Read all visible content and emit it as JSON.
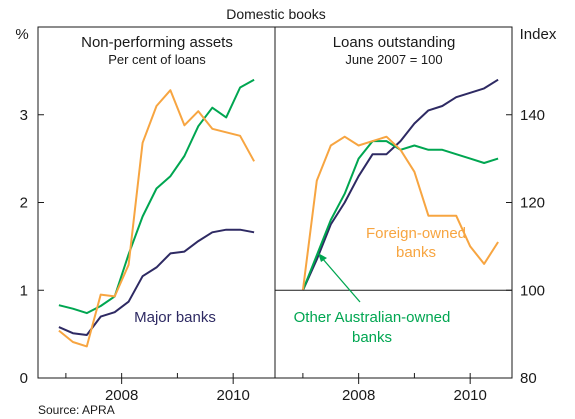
{
  "title": "Domestic books",
  "source": "Source: APRA",
  "colors": {
    "major": "#2e2a63",
    "other": "#00a651",
    "foreign": "#f7a541",
    "frame": "#1a1a1a"
  },
  "left_axis": {
    "unit": "%",
    "ticks": [
      "0",
      "1",
      "2",
      "3"
    ]
  },
  "right_axis": {
    "unit": "Index",
    "ticks": [
      "80",
      "100",
      "120",
      "140"
    ]
  },
  "chart_data": [
    {
      "type": "line",
      "title": "Non-performing assets",
      "subtitle": "Per cent of loans",
      "ylabel": "%",
      "ylim": [
        0,
        4
      ],
      "xlim": [
        2006.5,
        2010.75
      ],
      "x_ticks": [
        "2008",
        "2010"
      ],
      "x": [
        2006.875,
        2007.125,
        2007.375,
        2007.625,
        2007.875,
        2008.125,
        2008.375,
        2008.625,
        2008.875,
        2009.125,
        2009.375,
        2009.625,
        2009.875,
        2010.125,
        2010.375
      ],
      "series": [
        {
          "name": "Major banks",
          "color": "#2e2a63",
          "values": [
            0.58,
            0.51,
            0.49,
            0.7,
            0.75,
            0.87,
            1.16,
            1.26,
            1.42,
            1.44,
            1.56,
            1.66,
            1.69,
            1.69,
            1.66
          ]
        },
        {
          "name": "Other Australian-owned banks",
          "color": "#00a651",
          "values": [
            0.83,
            0.79,
            0.74,
            0.82,
            0.93,
            1.41,
            1.84,
            2.16,
            2.3,
            2.53,
            2.87,
            3.08,
            2.97,
            3.31,
            3.4
          ]
        },
        {
          "name": "Foreign-owned banks",
          "color": "#f7a541",
          "values": [
            0.54,
            0.41,
            0.36,
            0.95,
            0.93,
            1.29,
            2.68,
            3.1,
            3.28,
            2.88,
            3.04,
            2.84,
            2.8,
            2.76,
            2.47
          ]
        }
      ],
      "annotations": [
        "Major banks"
      ]
    },
    {
      "type": "line",
      "title": "Loans outstanding",
      "subtitle": "June 2007 = 100",
      "ylabel": "Index",
      "ylim": [
        80,
        160
      ],
      "xlim": [
        2006.5,
        2010.75
      ],
      "x_ticks": [
        "2008",
        "2010"
      ],
      "x": [
        2007.0,
        2007.25,
        2007.5,
        2007.75,
        2008.0,
        2008.25,
        2008.5,
        2008.75,
        2009.0,
        2009.25,
        2009.5,
        2009.75,
        2010.0,
        2010.25,
        2010.5
      ],
      "series": [
        {
          "name": "Major banks",
          "color": "#2e2a63",
          "values": [
            100,
            107,
            115,
            120,
            126,
            131,
            131,
            134,
            138,
            141,
            142,
            144,
            145,
            146,
            148
          ]
        },
        {
          "name": "Other Australian-owned banks",
          "color": "#00a651",
          "values": [
            100,
            108,
            116,
            122,
            130,
            134,
            134,
            132,
            133,
            132,
            132,
            131,
            130,
            129,
            130
          ]
        },
        {
          "name": "Foreign-owned banks",
          "color": "#f7a541",
          "values": [
            100,
            125,
            133,
            135,
            133,
            134,
            135,
            132,
            127,
            117,
            117,
            117,
            110,
            106,
            111
          ]
        }
      ],
      "annotations": [
        "Foreign-owned banks",
        "Other Australian-owned banks"
      ]
    }
  ]
}
